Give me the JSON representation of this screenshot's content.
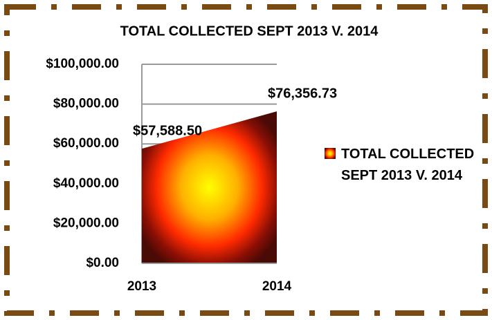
{
  "chart_data": {
    "type": "area",
    "title": "TOTAL COLLECTED SEPT 2013 V. 2014",
    "categories": [
      "2013",
      "2014"
    ],
    "series": [
      {
        "name": "TOTAL COLLECTED SEPT 2013 V. 2014",
        "color": "#ff9900",
        "values": [
          57588.5,
          76356.73
        ],
        "value_labels": [
          "$57,588.50",
          "$76,356.73"
        ]
      }
    ],
    "ylim": [
      0,
      100000
    ],
    "yticks": [
      {
        "value": 0,
        "label": "$0.00"
      },
      {
        "value": 20000,
        "label": "$20,000.00"
      },
      {
        "value": 40000,
        "label": "$40,000.00"
      },
      {
        "value": 60000,
        "label": "$60,000.00"
      },
      {
        "value": 80000,
        "label": "$80,000.00"
      },
      {
        "value": 100000,
        "label": "$100,000.00"
      }
    ],
    "grid": true,
    "legend": "right"
  }
}
